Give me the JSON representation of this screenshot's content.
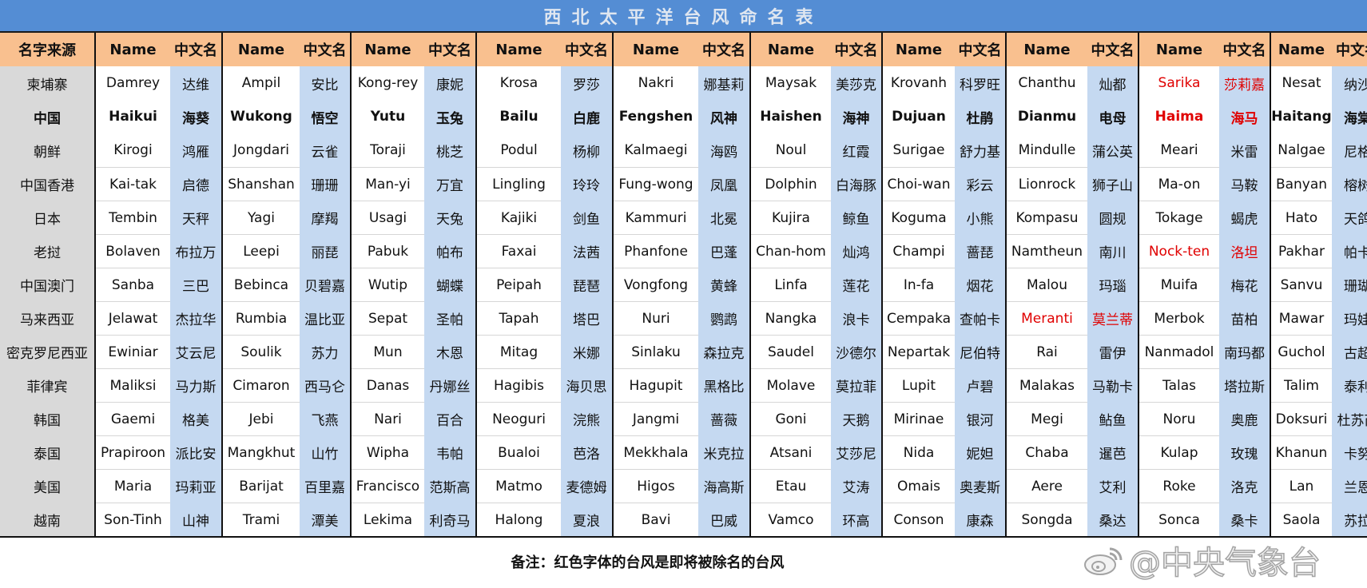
{
  "title": "西北太平洋台风命名表",
  "header": {
    "source": "名字来源",
    "name": "Name",
    "chinese": "中文名"
  },
  "colors": {
    "title_bar": "#548dd4",
    "header": "#f9c08f",
    "chinese_column": "#c5d9f1",
    "source_column": "#d9d9d9",
    "to_be_retired": "#e00000"
  },
  "sources": [
    "柬埔寨",
    "中国",
    "朝鲜",
    "中国香港",
    "日本",
    "老挝",
    "中国澳门",
    "马来西亚",
    "密克罗尼西亚",
    "菲律宾",
    "韩国",
    "泰国",
    "美国",
    "越南"
  ],
  "bold_source": "中国",
  "groups": [
    {
      "rows": [
        [
          "Damrey",
          "达维"
        ],
        [
          "Haikui",
          "海葵"
        ],
        [
          "Kirogi",
          "鸿雁"
        ],
        [
          "Kai-tak",
          "启德"
        ],
        [
          "Tembin",
          "天秤"
        ],
        [
          "Bolaven",
          "布拉万"
        ],
        [
          "Sanba",
          "三巴"
        ],
        [
          "Jelawat",
          "杰拉华"
        ],
        [
          "Ewiniar",
          "艾云尼"
        ],
        [
          "Maliksi",
          "马力斯"
        ],
        [
          "Gaemi",
          "格美"
        ],
        [
          "Prapiroon",
          "派比安"
        ],
        [
          "Maria",
          "玛莉亚"
        ],
        [
          "Son-Tinh",
          "山神"
        ]
      ]
    },
    {
      "rows": [
        [
          "Ampil",
          "安比"
        ],
        [
          "Wukong",
          "悟空"
        ],
        [
          "Jongdari",
          "云雀"
        ],
        [
          "Shanshan",
          "珊珊"
        ],
        [
          "Yagi",
          "摩羯"
        ],
        [
          "Leepi",
          "丽琵"
        ],
        [
          "Bebinca",
          "贝碧嘉"
        ],
        [
          "Rumbia",
          "温比亚"
        ],
        [
          "Soulik",
          "苏力"
        ],
        [
          "Cimaron",
          "西马仑"
        ],
        [
          "Jebi",
          "飞燕"
        ],
        [
          "Mangkhut",
          "山竹"
        ],
        [
          "Barijat",
          "百里嘉"
        ],
        [
          "Trami",
          "潭美"
        ]
      ]
    },
    {
      "rows": [
        [
          "Kong-rey",
          "康妮"
        ],
        [
          "Yutu",
          "玉兔"
        ],
        [
          "Toraji",
          "桃芝"
        ],
        [
          "Man-yi",
          "万宜"
        ],
        [
          "Usagi",
          "天兔"
        ],
        [
          "Pabuk",
          "帕布"
        ],
        [
          "Wutip",
          "蝴蝶"
        ],
        [
          "Sepat",
          "圣帕"
        ],
        [
          "Mun",
          "木恩"
        ],
        [
          "Danas",
          "丹娜丝"
        ],
        [
          "Nari",
          "百合"
        ],
        [
          "Wipha",
          "韦帕"
        ],
        [
          "Francisco",
          "范斯高"
        ],
        [
          "Lekima",
          "利奇马"
        ]
      ]
    },
    {
      "rows": [
        [
          "Krosa",
          "罗莎"
        ],
        [
          "Bailu",
          "白鹿"
        ],
        [
          "Podul",
          "杨柳"
        ],
        [
          "Lingling",
          "玲玲"
        ],
        [
          "Kajiki",
          "剑鱼"
        ],
        [
          "Faxai",
          "法茜"
        ],
        [
          "Peipah",
          "琵琶"
        ],
        [
          "Tapah",
          "塔巴"
        ],
        [
          "Mitag",
          "米娜"
        ],
        [
          "Hagibis",
          "海贝思"
        ],
        [
          "Neoguri",
          "浣熊"
        ],
        [
          "Bualoi",
          "芭洛"
        ],
        [
          "Matmo",
          "麦德姆"
        ],
        [
          "Halong",
          "夏浪"
        ]
      ]
    },
    {
      "rows": [
        [
          "Nakri",
          "娜基莉"
        ],
        [
          "Fengshen",
          "风神"
        ],
        [
          "Kalmaegi",
          "海鸥"
        ],
        [
          "Fung-wong",
          "凤凰"
        ],
        [
          "Kammuri",
          "北冕"
        ],
        [
          "Phanfone",
          "巴蓬"
        ],
        [
          "Vongfong",
          "黄蜂"
        ],
        [
          "Nuri",
          "鹦鹉"
        ],
        [
          "Sinlaku",
          "森拉克"
        ],
        [
          "Hagupit",
          "黑格比"
        ],
        [
          "Jangmi",
          "蔷薇"
        ],
        [
          "Mekkhala",
          "米克拉"
        ],
        [
          "Higos",
          "海高斯"
        ],
        [
          "Bavi",
          "巴威"
        ]
      ]
    },
    {
      "rows": [
        [
          "Maysak",
          "美莎克"
        ],
        [
          "Haishen",
          "海神"
        ],
        [
          "Noul",
          "红霞"
        ],
        [
          "Dolphin",
          "白海豚"
        ],
        [
          "Kujira",
          "鲸鱼"
        ],
        [
          "Chan-hom",
          "灿鸿"
        ],
        [
          "Linfa",
          "莲花"
        ],
        [
          "Nangka",
          "浪卡"
        ],
        [
          "Saudel",
          "沙德尔"
        ],
        [
          "Molave",
          "莫拉菲"
        ],
        [
          "Goni",
          "天鹅"
        ],
        [
          "Atsani",
          "艾莎尼"
        ],
        [
          "Etau",
          "艾涛"
        ],
        [
          "Vamco",
          "环高"
        ]
      ]
    },
    {
      "rows": [
        [
          "Krovanh",
          "科罗旺"
        ],
        [
          "Dujuan",
          "杜鹃"
        ],
        [
          "Surigae",
          "舒力基"
        ],
        [
          "Choi-wan",
          "彩云"
        ],
        [
          "Koguma",
          "小熊"
        ],
        [
          "Champi",
          "蔷琵"
        ],
        [
          "In-fa",
          "烟花"
        ],
        [
          "Cempaka",
          "查帕卡"
        ],
        [
          "Nepartak",
          "尼伯特"
        ],
        [
          "Lupit",
          "卢碧"
        ],
        [
          "Mirinae",
          "银河"
        ],
        [
          "Nida",
          "妮妲"
        ],
        [
          "Omais",
          "奥麦斯"
        ],
        [
          "Conson",
          "康森"
        ]
      ]
    },
    {
      "rows": [
        [
          "Chanthu",
          "灿都"
        ],
        [
          "Dianmu",
          "电母"
        ],
        [
          "Mindulle",
          "蒲公英"
        ],
        [
          "Lionrock",
          "狮子山"
        ],
        [
          "Kompasu",
          "圆规"
        ],
        [
          "Namtheun",
          "南川"
        ],
        [
          "Malou",
          "玛瑙"
        ],
        [
          "Meranti",
          "莫兰蒂"
        ],
        [
          "Rai",
          "雷伊"
        ],
        [
          "Malakas",
          "马勒卡"
        ],
        [
          "Megi",
          "鲇鱼"
        ],
        [
          "Chaba",
          "暹芭"
        ],
        [
          "Aere",
          "艾利"
        ],
        [
          "Songda",
          "桑达"
        ]
      ],
      "red_rows": [
        7
      ]
    },
    {
      "rows": [
        [
          "Sarika",
          "莎莉嘉"
        ],
        [
          "Haima",
          "海马"
        ],
        [
          "Meari",
          "米雷"
        ],
        [
          "Ma-on",
          "马鞍"
        ],
        [
          "Tokage",
          "蝎虎"
        ],
        [
          "Nock-ten",
          "洛坦"
        ],
        [
          "Muifa",
          "梅花"
        ],
        [
          "Merbok",
          "苗柏"
        ],
        [
          "Nanmadol",
          "南玛都"
        ],
        [
          "Talas",
          "塔拉斯"
        ],
        [
          "Noru",
          "奥鹿"
        ],
        [
          "Kulap",
          "玫瑰"
        ],
        [
          "Roke",
          "洛克"
        ],
        [
          "Sonca",
          "桑卡"
        ]
      ],
      "red_rows": [
        0,
        1,
        5
      ]
    },
    {
      "rows": [
        [
          "Nesat",
          "纳沙"
        ],
        [
          "Haitang",
          "海棠"
        ],
        [
          "Nalgae",
          "尼格"
        ],
        [
          "Banyan",
          "榕树"
        ],
        [
          "Hato",
          "天鸽"
        ],
        [
          "Pakhar",
          "帕卡"
        ],
        [
          "Sanvu",
          "珊瑚"
        ],
        [
          "Mawar",
          "玛娃"
        ],
        [
          "Guchol",
          "古超"
        ],
        [
          "Talim",
          "泰利"
        ],
        [
          "Doksuri",
          "杜苏芮"
        ],
        [
          "Khanun",
          "卡努"
        ],
        [
          "Lan",
          "兰恩"
        ],
        [
          "Saola",
          "苏拉"
        ]
      ]
    }
  ],
  "footnote": "备注：红色字体的台风是即将被除名的台风",
  "watermark": {
    "icon": "weibo-logo-icon",
    "text": "@中央气象台"
  }
}
